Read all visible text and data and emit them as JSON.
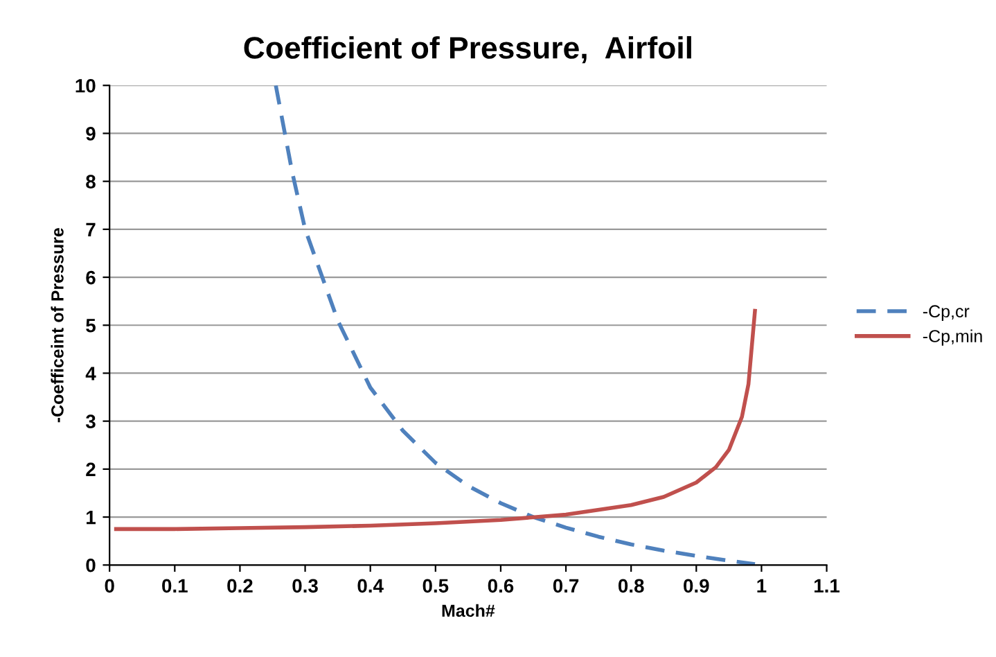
{
  "chart_data": {
    "type": "line",
    "title": "Coefficient of Pressure,  Airfoil",
    "xlabel": "Mach#",
    "ylabel": "-Coefficeint of Pressure",
    "series": [
      {
        "name": "-Cp,cr",
        "color": "#4f81bd",
        "line_style": "dashed",
        "x": [
          0.255,
          0.28,
          0.3,
          0.35,
          0.4,
          0.45,
          0.5,
          0.55,
          0.6,
          0.65,
          0.7,
          0.75,
          0.8,
          0.85,
          0.9,
          0.95,
          0.99
        ],
        "values": [
          10,
          8.2,
          7.0,
          5.1,
          3.7,
          2.8,
          2.13,
          1.65,
          1.29,
          1.0,
          0.78,
          0.59,
          0.43,
          0.3,
          0.19,
          0.09,
          0.02
        ]
      },
      {
        "name": "-Cp,min",
        "color": "#c0504d",
        "line_style": "solid",
        "x": [
          0.01,
          0.1,
          0.2,
          0.3,
          0.4,
          0.5,
          0.6,
          0.7,
          0.8,
          0.85,
          0.9,
          0.93,
          0.95,
          0.97,
          0.98,
          0.99
        ],
        "values": [
          0.75,
          0.75,
          0.77,
          0.79,
          0.82,
          0.87,
          0.94,
          1.05,
          1.25,
          1.42,
          1.72,
          2.04,
          2.4,
          3.09,
          3.77,
          5.3
        ]
      }
    ],
    "xlim": [
      0,
      1.1
    ],
    "xticks": [
      {
        "value": 0,
        "label": "0"
      },
      0.1,
      0.2,
      0.3,
      0.4,
      0.5,
      0.6,
      0.7,
      0.8,
      0.9,
      {
        "value": 1,
        "label": "1"
      },
      1.1
    ],
    "ylim": [
      0,
      10
    ],
    "yticks": [
      0,
      1,
      2,
      3,
      4,
      5,
      6,
      7,
      8,
      9,
      10
    ],
    "grid": "y",
    "legend": "right"
  }
}
